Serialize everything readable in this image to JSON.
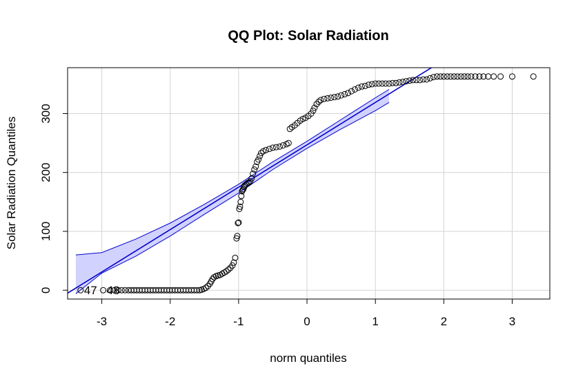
{
  "chart_data": {
    "type": "scatter",
    "title": "QQ Plot: Solar Radiation",
    "xlabel": "norm quantiles",
    "ylabel": "Solar Radiation Quantiles",
    "xlim": [
      -3.5,
      3.55
    ],
    "ylim": [
      -15,
      378
    ],
    "x_ticks": [
      -3,
      -2,
      -1,
      0,
      1,
      2,
      3
    ],
    "y_ticks": [
      0,
      100,
      200,
      300
    ],
    "grid": true,
    "colors": {
      "reference_line": "#0000cd",
      "confidence_band": "#d2d2ff",
      "points": "#000000",
      "grid": "#d3d3d3"
    },
    "reference_line": {
      "intercept": 247,
      "slope": 72
    },
    "confidence_band": {
      "x": [
        -3.38,
        -3.0,
        -2.5,
        -2.0,
        -1.5,
        -1.0,
        -0.5,
        0.0,
        0.5,
        1.0,
        1.2
      ],
      "lower": [
        -6,
        29,
        58,
        92,
        129,
        165,
        205,
        241,
        274,
        305,
        319
      ],
      "upper": [
        60,
        64,
        87,
        114,
        146,
        180,
        218,
        253,
        290,
        327,
        341
      ]
    },
    "point_labels": [
      {
        "text": "47",
        "x": -3.31,
        "y": 0
      },
      {
        "text": "48",
        "x": -2.98,
        "y": 0
      }
    ],
    "series": [
      {
        "points": [
          [
            -3.31,
            0
          ],
          [
            -2.98,
            0
          ],
          [
            -2.88,
            0
          ],
          [
            -2.82,
            0
          ],
          [
            -2.76,
            0
          ],
          [
            -2.71,
            0
          ],
          [
            -2.66,
            0
          ],
          [
            -2.61,
            0
          ],
          [
            -2.57,
            0
          ],
          [
            -2.53,
            0
          ],
          [
            -2.49,
            0
          ],
          [
            -2.45,
            0
          ],
          [
            -2.41,
            0
          ],
          [
            -2.37,
            0
          ],
          [
            -2.33,
            0
          ],
          [
            -2.29,
            0
          ],
          [
            -2.25,
            0
          ],
          [
            -2.21,
            0
          ],
          [
            -2.17,
            0
          ],
          [
            -2.13,
            0
          ],
          [
            -2.09,
            0
          ],
          [
            -2.05,
            0
          ],
          [
            -2.01,
            0
          ],
          [
            -1.97,
            0
          ],
          [
            -1.93,
            0
          ],
          [
            -1.89,
            0
          ],
          [
            -1.85,
            0
          ],
          [
            -1.81,
            0
          ],
          [
            -1.77,
            0
          ],
          [
            -1.73,
            0
          ],
          [
            -1.69,
            0
          ],
          [
            -1.65,
            0
          ],
          [
            -1.61,
            0
          ],
          [
            -1.57,
            0
          ],
          [
            -1.54,
            1
          ],
          [
            -1.51,
            2
          ],
          [
            -1.48,
            4
          ],
          [
            -1.45,
            7
          ],
          [
            -1.42,
            11
          ],
          [
            -1.4,
            15
          ],
          [
            -1.38,
            19
          ],
          [
            -1.36,
            22
          ],
          [
            -1.33,
            24
          ],
          [
            -1.3,
            25
          ],
          [
            -1.27,
            26
          ],
          [
            -1.24,
            28
          ],
          [
            -1.21,
            30
          ],
          [
            -1.18,
            32
          ],
          [
            -1.15,
            35
          ],
          [
            -1.12,
            38
          ],
          [
            -1.09,
            42
          ],
          [
            -1.07,
            47
          ],
          [
            -1.05,
            55
          ],
          [
            -1.03,
            88
          ],
          [
            -1.02,
            92
          ],
          [
            -1.01,
            114
          ],
          [
            -1.0,
            115
          ],
          [
            -0.99,
            138
          ],
          [
            -0.98,
            142
          ],
          [
            -0.97,
            150
          ],
          [
            -0.96,
            160
          ],
          [
            -0.95,
            168
          ],
          [
            -0.94,
            170
          ],
          [
            -0.93,
            172
          ],
          [
            -0.92,
            175
          ],
          [
            -0.91,
            178
          ],
          [
            -0.89,
            180
          ],
          [
            -0.87,
            182
          ],
          [
            -0.85,
            183
          ],
          [
            -0.83,
            185
          ],
          [
            -0.81,
            190
          ],
          [
            -0.79,
            198
          ],
          [
            -0.77,
            205
          ],
          [
            -0.75,
            210
          ],
          [
            -0.73,
            218
          ],
          [
            -0.71,
            222
          ],
          [
            -0.69,
            228
          ],
          [
            -0.67,
            233
          ],
          [
            -0.64,
            236
          ],
          [
            -0.6,
            238
          ],
          [
            -0.55,
            240
          ],
          [
            -0.5,
            242
          ],
          [
            -0.45,
            243
          ],
          [
            -0.4,
            244
          ],
          [
            -0.35,
            246
          ],
          [
            -0.3,
            248
          ],
          [
            -0.27,
            250
          ],
          [
            -0.25,
            274
          ],
          [
            -0.22,
            277
          ],
          [
            -0.18,
            280
          ],
          [
            -0.14,
            284
          ],
          [
            -0.1,
            288
          ],
          [
            -0.06,
            291
          ],
          [
            -0.02,
            293
          ],
          [
            0.02,
            296
          ],
          [
            0.06,
            300
          ],
          [
            0.09,
            305
          ],
          [
            0.11,
            310
          ],
          [
            0.14,
            316
          ],
          [
            0.17,
            320
          ],
          [
            0.2,
            323
          ],
          [
            0.25,
            325
          ],
          [
            0.3,
            326
          ],
          [
            0.35,
            327
          ],
          [
            0.4,
            328
          ],
          [
            0.45,
            329
          ],
          [
            0.5,
            331
          ],
          [
            0.55,
            333
          ],
          [
            0.6,
            335
          ],
          [
            0.65,
            338
          ],
          [
            0.7,
            341
          ],
          [
            0.75,
            344
          ],
          [
            0.8,
            346
          ],
          [
            0.85,
            347
          ],
          [
            0.9,
            349
          ],
          [
            0.95,
            350
          ],
          [
            1.0,
            351
          ],
          [
            1.05,
            351
          ],
          [
            1.1,
            351
          ],
          [
            1.15,
            351
          ],
          [
            1.2,
            351
          ],
          [
            1.25,
            352
          ],
          [
            1.3,
            352
          ],
          [
            1.35,
            353
          ],
          [
            1.4,
            354
          ],
          [
            1.45,
            355
          ],
          [
            1.5,
            356
          ],
          [
            1.55,
            357
          ],
          [
            1.6,
            357
          ],
          [
            1.65,
            357
          ],
          [
            1.7,
            358
          ],
          [
            1.75,
            358
          ],
          [
            1.8,
            360
          ],
          [
            1.85,
            362
          ],
          [
            1.9,
            363
          ],
          [
            1.95,
            363
          ],
          [
            2.0,
            363
          ],
          [
            2.05,
            363
          ],
          [
            2.1,
            363
          ],
          [
            2.15,
            363
          ],
          [
            2.2,
            363
          ],
          [
            2.25,
            363
          ],
          [
            2.3,
            363
          ],
          [
            2.35,
            363
          ],
          [
            2.4,
            363
          ],
          [
            2.46,
            363
          ],
          [
            2.52,
            363
          ],
          [
            2.58,
            363
          ],
          [
            2.65,
            363
          ],
          [
            2.73,
            363
          ],
          [
            2.83,
            363
          ],
          [
            3.0,
            363
          ],
          [
            3.31,
            363
          ]
        ]
      }
    ]
  }
}
